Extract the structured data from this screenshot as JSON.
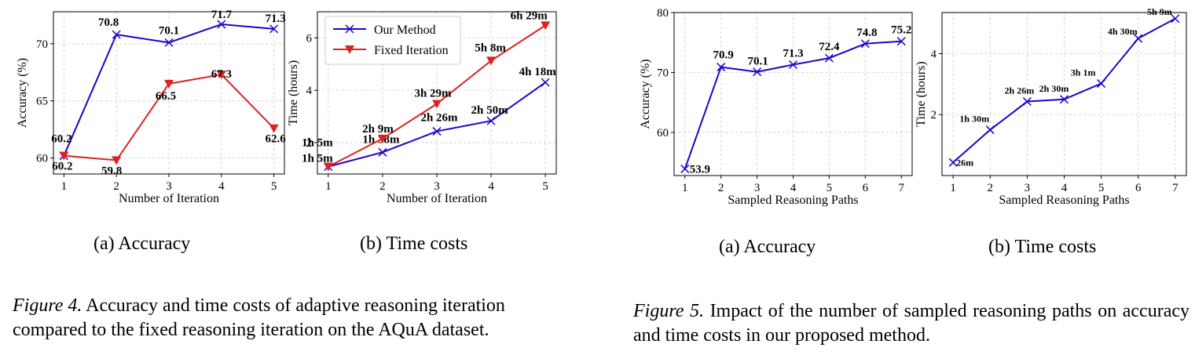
{
  "colors": {
    "method": "#2200cc",
    "fixed": "#dd2222",
    "grid": "#c8c8c8",
    "axis": "#000000"
  },
  "figure4": {
    "caption_label": "Figure 4.",
    "caption_text": "Accuracy and time costs of adaptive reasoning iteration compared to the fixed reasoning iteration on the AQuA dataset.",
    "subcaptions": [
      "(a)  Accuracy",
      "(b)  Time costs"
    ]
  },
  "figure5": {
    "caption_label": "Figure 5.",
    "caption_text": "Impact of the number of sampled reasoning paths on accuracy and time costs in our proposed method.",
    "subcaptions": [
      "(a)  Accuracy",
      "(b)  Time costs"
    ]
  },
  "chart_data": [
    {
      "type": "line",
      "xlabel": "Number of Iteration",
      "ylabel": "Accuracy (%)",
      "x": [
        1,
        2,
        3,
        4,
        5
      ],
      "xlim": [
        0.8,
        5.2
      ],
      "ylim": [
        58.6,
        72.8
      ],
      "yticks": [
        60,
        65,
        70
      ],
      "grid": true,
      "series": [
        {
          "values": [
            60.2,
            70.8,
            70.1,
            71.7,
            71.3
          ],
          "labels": [
            "60.2",
            "70.8",
            "70.1",
            "71.7",
            "71.3"
          ],
          "marker": "x",
          "color": "#2200cc"
        },
        {
          "values": [
            60.2,
            59.8,
            66.5,
            67.3,
            62.6
          ],
          "labels": [
            "60.2",
            "59.8",
            "66.5",
            "67.3",
            "62.6"
          ],
          "marker": "triangle-down",
          "color": "#dd2222"
        }
      ]
    },
    {
      "type": "line",
      "xlabel": "Number of Iteration",
      "ylabel": "Time (hours)",
      "x": [
        1,
        2,
        3,
        4,
        5
      ],
      "xlim": [
        0.8,
        5.2
      ],
      "ylim": [
        0.8,
        7.0
      ],
      "yticks": [
        2,
        4,
        6
      ],
      "grid": true,
      "legend_position": "top-left",
      "series": [
        {
          "name": "Our Method",
          "values": [
            1.08,
            1.63,
            2.43,
            2.83,
            4.3
          ],
          "labels": [
            "1h 5m",
            "1h 38m",
            "2h 26m",
            "2h 50m",
            "4h 18m"
          ],
          "marker": "x",
          "color": "#2200cc"
        },
        {
          "name": "Fixed Iteration",
          "values": [
            1.08,
            2.15,
            3.48,
            5.13,
            6.48
          ],
          "labels": [
            "1h 5m",
            "2h 9m",
            "3h 29m",
            "5h 8m",
            "6h 29m"
          ],
          "marker": "triangle-down",
          "color": "#dd2222"
        }
      ]
    },
    {
      "type": "line",
      "xlabel": "Sampled Reasoning Paths",
      "ylabel": "Accuracy (%)",
      "x": [
        1,
        2,
        3,
        4,
        5,
        6,
        7
      ],
      "xlim": [
        0.7,
        7.3
      ],
      "ylim": [
        52.8,
        80.0
      ],
      "yticks": [
        60,
        70,
        80
      ],
      "grid": true,
      "series": [
        {
          "values": [
            53.9,
            70.9,
            70.1,
            71.3,
            72.4,
            74.8,
            75.2
          ],
          "labels": [
            "53.9",
            "70.9",
            "70.1",
            "71.3",
            "72.4",
            "74.8",
            "75.2"
          ],
          "marker": "x",
          "color": "#2200cc"
        }
      ]
    },
    {
      "type": "line",
      "xlabel": "Sampled Reasoning Paths",
      "ylabel": "Time (hours)",
      "x": [
        1,
        2,
        3,
        4,
        5,
        6,
        7
      ],
      "xlim": [
        0.7,
        7.3
      ],
      "ylim": [
        0.0,
        5.35
      ],
      "yticks": [
        2,
        4
      ],
      "grid": true,
      "series": [
        {
          "values": [
            0.43,
            1.5,
            2.43,
            2.5,
            3.02,
            4.5,
            5.15
          ],
          "labels": [
            "26m",
            "1h 30m",
            "2h 26m",
            "2h 30m",
            "3h 1m",
            "4h 30m",
            "5h 9m"
          ],
          "marker": "x",
          "color": "#2200cc"
        }
      ]
    }
  ]
}
